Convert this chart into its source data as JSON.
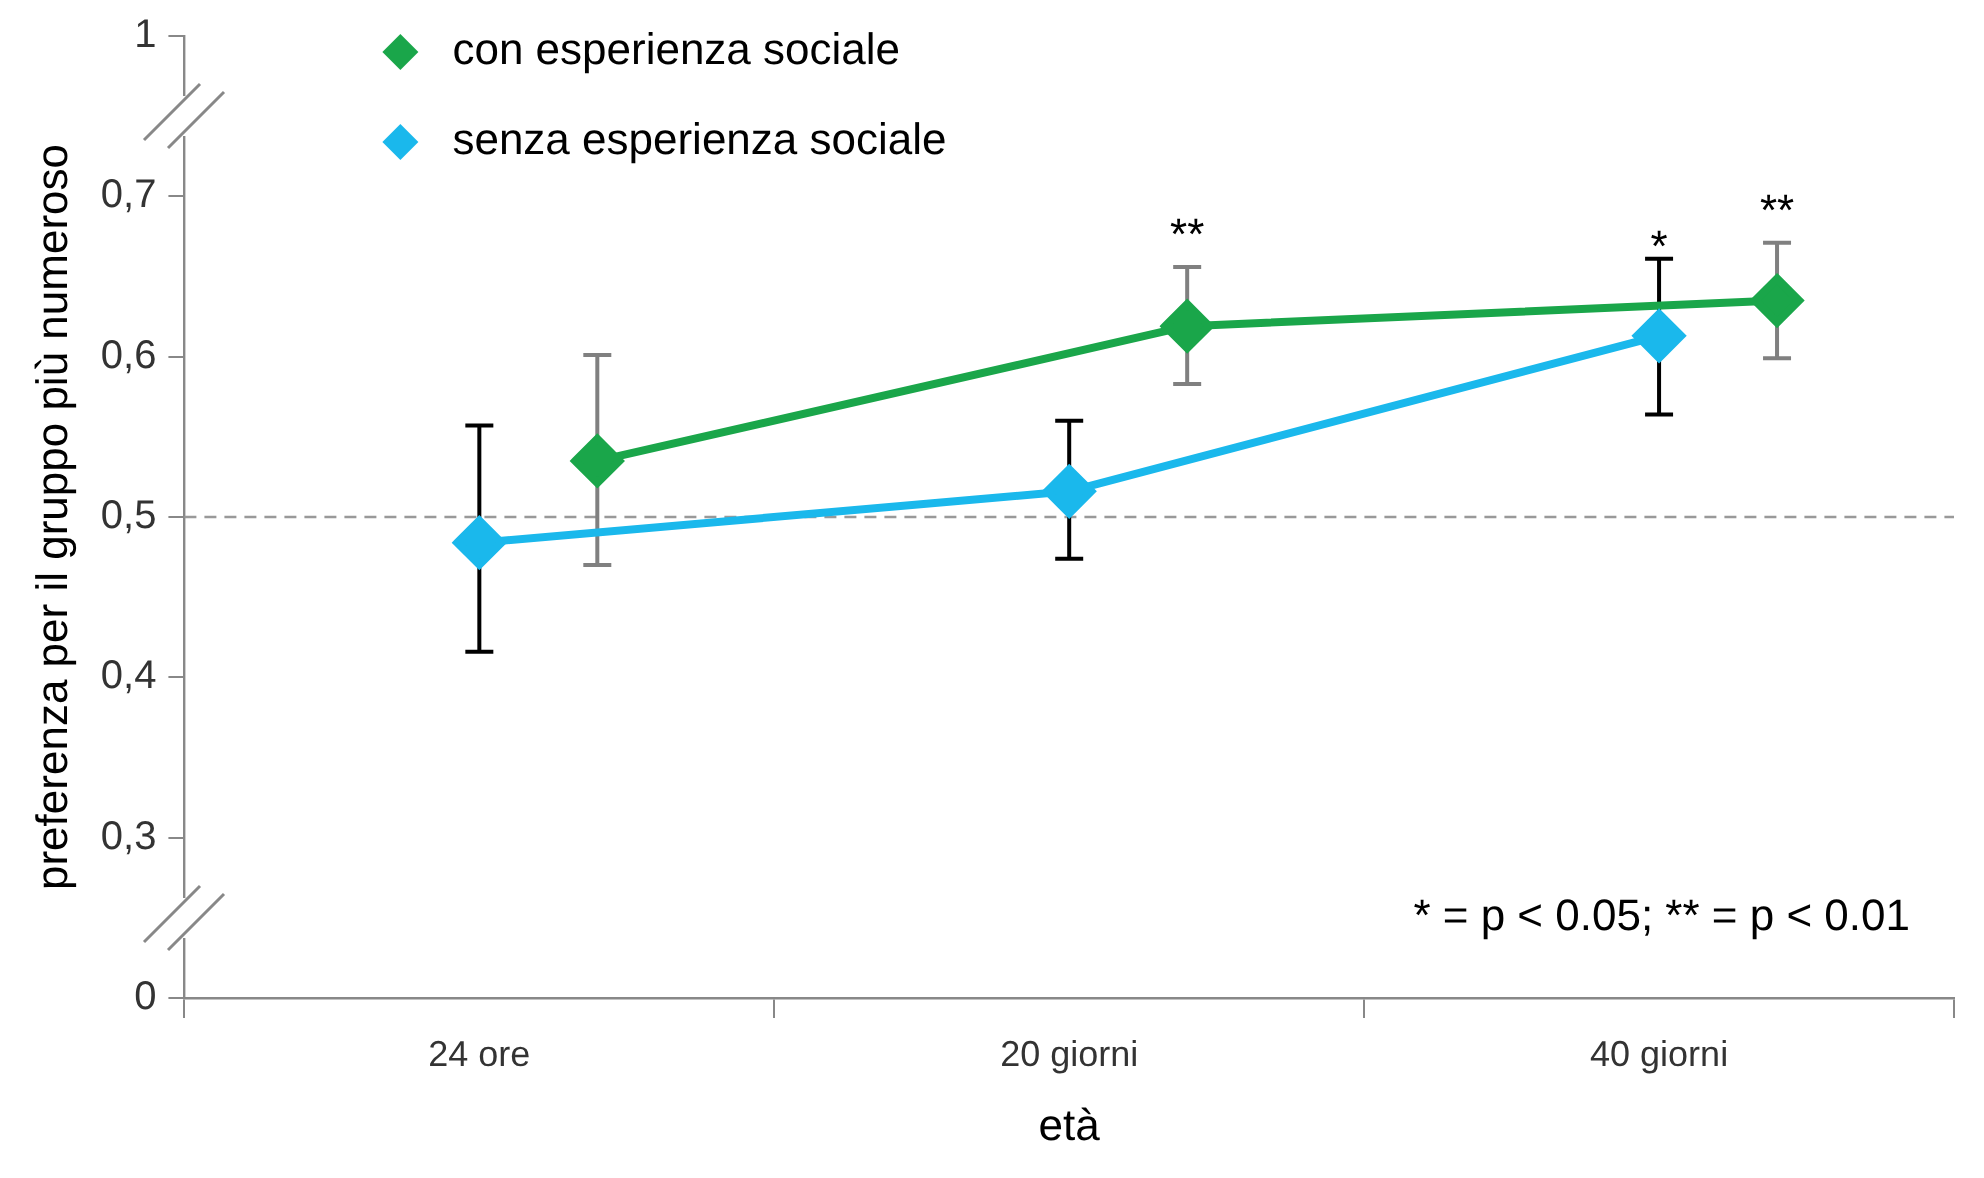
{
  "chart_data": {
    "type": "line",
    "xlabel": "età",
    "ylabel": "preferenza per il gruppo più numeroso",
    "categories": [
      "24 ore",
      "20 giorni",
      "40 giorni"
    ],
    "series": [
      {
        "name": "con esperienza sociale",
        "color": "#1aa64a",
        "values": [
          0.535,
          0.619,
          0.635
        ],
        "errors": [
          [
            0.47,
            0.601
          ],
          [
            0.583,
            0.656
          ],
          [
            0.599,
            0.671
          ]
        ]
      },
      {
        "name": "senza esperienza sociale",
        "color": "#1ab8ec",
        "values": [
          0.484,
          0.516,
          0.613
        ],
        "errors": [
          [
            0.416,
            0.557
          ],
          [
            0.474,
            0.56
          ],
          [
            0.564,
            0.661
          ]
        ]
      }
    ],
    "ylim": [
      0.2,
      0.8
    ],
    "yticks": [
      {
        "value": 0.2,
        "label": "0"
      },
      {
        "value": 0.3,
        "label": "0,3"
      },
      {
        "value": 0.4,
        "label": "0,4"
      },
      {
        "value": 0.5,
        "label": "0,5"
      },
      {
        "value": 0.6,
        "label": "0,6"
      },
      {
        "value": 0.7,
        "label": "0,7"
      },
      {
        "value": 0.8,
        "label": "1"
      }
    ],
    "ref_lines": [
      {
        "axis": "y",
        "value": 0.5,
        "color": "#999999",
        "line_style": "dashed"
      }
    ],
    "annotations": [
      "**",
      "*",
      "**",
      "* = p < 0.05; ** = p < 0.01"
    ],
    "marker": "diamond",
    "line_style": "solid",
    "grid": false,
    "legend": "top left"
  }
}
